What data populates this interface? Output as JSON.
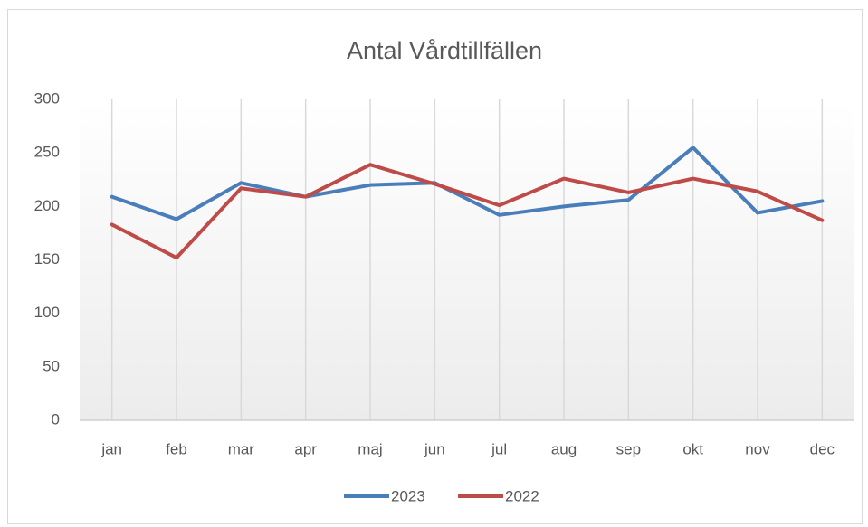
{
  "chart_data": {
    "type": "line",
    "title": "Antal Vårdtillfällen",
    "categories": [
      "jan",
      "feb",
      "mar",
      "apr",
      "maj",
      "jun",
      "jul",
      "aug",
      "sep",
      "okt",
      "nov",
      "dec"
    ],
    "series": [
      {
        "name": "2023",
        "color": "#4a7ebb",
        "values": [
          209,
          188,
          222,
          209,
          220,
          222,
          192,
          200,
          206,
          255,
          194,
          205
        ]
      },
      {
        "name": "2022",
        "color": "#be4b48",
        "values": [
          183,
          152,
          217,
          209,
          239,
          221,
          201,
          226,
          213,
          226,
          214,
          187
        ]
      }
    ],
    "ylim": [
      0,
      300
    ],
    "yticks": [
      0,
      50,
      100,
      150,
      200,
      250,
      300
    ],
    "xgrid": true,
    "legend": "bottom"
  }
}
